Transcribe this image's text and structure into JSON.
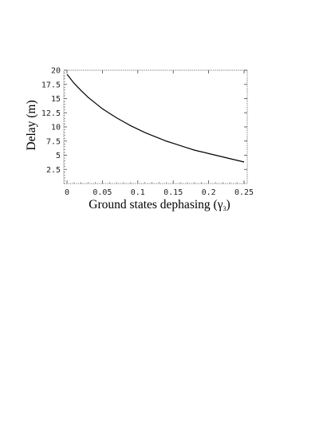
{
  "chart_data": {
    "type": "line",
    "xlabel_main": "Ground states dephasing (γ",
    "xlabel_sub": "3",
    "xlabel_close": ")",
    "ylabel": "Delay (m)",
    "xlim": [
      0,
      0.25
    ],
    "ylim": [
      0,
      20
    ],
    "x_ticks": [
      0,
      0.05,
      0.1,
      0.15,
      0.2,
      0.25
    ],
    "x_tick_labels": [
      "0",
      "0.05",
      "0.1",
      "0.15",
      "0.2",
      "0.25"
    ],
    "y_ticks": [
      2.5,
      5,
      7.5,
      10,
      12.5,
      15,
      17.5,
      20
    ],
    "y_tick_labels": [
      "2.5",
      "5",
      "7.5",
      "10",
      "12.5",
      "15",
      "17.5",
      "20"
    ],
    "grid": false,
    "series": [
      {
        "x": [
          0,
          0.01,
          0.02,
          0.03,
          0.04,
          0.05,
          0.06,
          0.07,
          0.08,
          0.09,
          0.1,
          0.11,
          0.12,
          0.13,
          0.14,
          0.15,
          0.16,
          0.17,
          0.18,
          0.19,
          0.2,
          0.21,
          0.22,
          0.23,
          0.24,
          0.25
        ],
        "y": [
          19.3,
          17.7,
          16.4,
          15.2,
          14.2,
          13.2,
          12.4,
          11.6,
          10.9,
          10.2,
          9.6,
          9.0,
          8.5,
          8.0,
          7.5,
          7.1,
          6.7,
          6.3,
          5.9,
          5.6,
          5.3,
          5.0,
          4.7,
          4.4,
          4.1,
          3.8
        ]
      }
    ]
  }
}
